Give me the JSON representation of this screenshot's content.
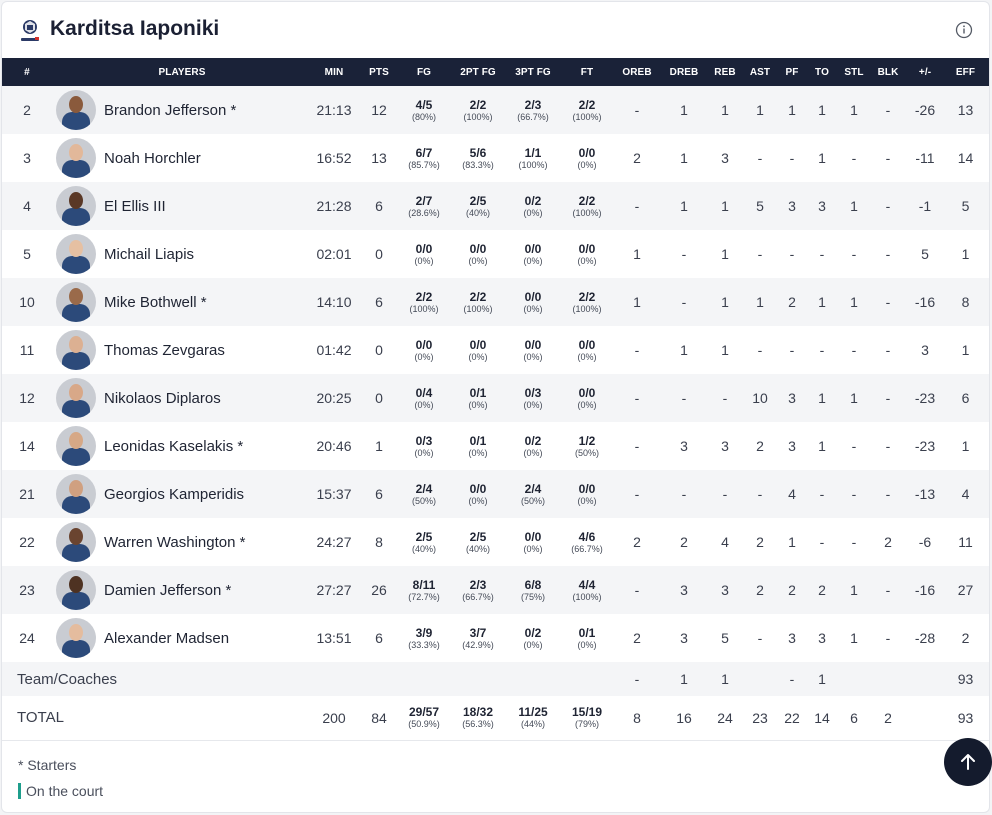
{
  "team": {
    "name": "Karditsa Iaponiki",
    "logo_icon": "karditsa-crest-icon"
  },
  "columns": [
    "#",
    "PLAYERS",
    "MIN",
    "PTS",
    "FG",
    "2PT FG",
    "3PT FG",
    "FT",
    "OREB",
    "DREB",
    "REB",
    "AST",
    "PF",
    "TO",
    "STL",
    "BLK",
    "+/-",
    "EFF"
  ],
  "players": [
    {
      "num": "2",
      "name": "Brandon Jefferson *",
      "min": "21:13",
      "pts": "12",
      "fg": [
        "4/5",
        "(80%)"
      ],
      "fg2": [
        "2/2",
        "(100%)"
      ],
      "fg3": [
        "2/3",
        "(66.7%)"
      ],
      "ft": [
        "2/2",
        "(100%)"
      ],
      "oreb": "-",
      "dreb": "1",
      "reb": "1",
      "ast": "1",
      "pf": "1",
      "to": "1",
      "stl": "1",
      "blk": "-",
      "pm": "-26",
      "eff": "13",
      "skin": "#8a5a3c"
    },
    {
      "num": "3",
      "name": "Noah Horchler",
      "min": "16:52",
      "pts": "13",
      "fg": [
        "6/7",
        "(85.7%)"
      ],
      "fg2": [
        "5/6",
        "(83.3%)"
      ],
      "fg3": [
        "1/1",
        "(100%)"
      ],
      "ft": [
        "0/0",
        "(0%)"
      ],
      "oreb": "2",
      "dreb": "1",
      "reb": "3",
      "ast": "-",
      "pf": "-",
      "to": "1",
      "stl": "-",
      "blk": "-",
      "pm": "-11",
      "eff": "14",
      "skin": "#e2b89a"
    },
    {
      "num": "4",
      "name": "El Ellis III",
      "min": "21:28",
      "pts": "6",
      "fg": [
        "2/7",
        "(28.6%)"
      ],
      "fg2": [
        "2/5",
        "(40%)"
      ],
      "fg3": [
        "0/2",
        "(0%)"
      ],
      "ft": [
        "2/2",
        "(100%)"
      ],
      "oreb": "-",
      "dreb": "1",
      "reb": "1",
      "ast": "5",
      "pf": "3",
      "to": "3",
      "stl": "1",
      "blk": "-",
      "pm": "-1",
      "eff": "5",
      "skin": "#5a3826"
    },
    {
      "num": "5",
      "name": "Michail Liapis",
      "min": "02:01",
      "pts": "0",
      "fg": [
        "0/0",
        "(0%)"
      ],
      "fg2": [
        "0/0",
        "(0%)"
      ],
      "fg3": [
        "0/0",
        "(0%)"
      ],
      "ft": [
        "0/0",
        "(0%)"
      ],
      "oreb": "1",
      "dreb": "-",
      "reb": "1",
      "ast": "-",
      "pf": "-",
      "to": "-",
      "stl": "-",
      "blk": "-",
      "pm": "5",
      "eff": "1",
      "skin": "#e6c0a2"
    },
    {
      "num": "10",
      "name": "Mike Bothwell *",
      "min": "14:10",
      "pts": "6",
      "fg": [
        "2/2",
        "(100%)"
      ],
      "fg2": [
        "2/2",
        "(100%)"
      ],
      "fg3": [
        "0/0",
        "(0%)"
      ],
      "ft": [
        "2/2",
        "(100%)"
      ],
      "oreb": "1",
      "dreb": "-",
      "reb": "1",
      "ast": "1",
      "pf": "2",
      "to": "1",
      "stl": "1",
      "blk": "-",
      "pm": "-16",
      "eff": "8",
      "skin": "#9a6a4a"
    },
    {
      "num": "11",
      "name": "Thomas Zevgaras",
      "min": "01:42",
      "pts": "0",
      "fg": [
        "0/0",
        "(0%)"
      ],
      "fg2": [
        "0/0",
        "(0%)"
      ],
      "fg3": [
        "0/0",
        "(0%)"
      ],
      "ft": [
        "0/0",
        "(0%)"
      ],
      "oreb": "-",
      "dreb": "1",
      "reb": "1",
      "ast": "-",
      "pf": "-",
      "to": "-",
      "stl": "-",
      "blk": "-",
      "pm": "3",
      "eff": "1",
      "skin": "#dcb092"
    },
    {
      "num": "12",
      "name": "Nikolaos Diplaros",
      "min": "20:25",
      "pts": "0",
      "fg": [
        "0/4",
        "(0%)"
      ],
      "fg2": [
        "0/1",
        "(0%)"
      ],
      "fg3": [
        "0/3",
        "(0%)"
      ],
      "ft": [
        "0/0",
        "(0%)"
      ],
      "oreb": "-",
      "dreb": "-",
      "reb": "-",
      "ast": "10",
      "pf": "3",
      "to": "1",
      "stl": "1",
      "blk": "-",
      "pm": "-23",
      "eff": "6",
      "skin": "#d8a888"
    },
    {
      "num": "14",
      "name": "Leonidas Kaselakis *",
      "min": "20:46",
      "pts": "1",
      "fg": [
        "0/3",
        "(0%)"
      ],
      "fg2": [
        "0/1",
        "(0%)"
      ],
      "fg3": [
        "0/2",
        "(0%)"
      ],
      "ft": [
        "1/2",
        "(50%)"
      ],
      "oreb": "-",
      "dreb": "3",
      "reb": "3",
      "ast": "2",
      "pf": "3",
      "to": "1",
      "stl": "-",
      "blk": "-",
      "pm": "-23",
      "eff": "1",
      "skin": "#d6a886"
    },
    {
      "num": "21",
      "name": "Georgios Kamperidis",
      "min": "15:37",
      "pts": "6",
      "fg": [
        "2/4",
        "(50%)"
      ],
      "fg2": [
        "0/0",
        "(0%)"
      ],
      "fg3": [
        "2/4",
        "(50%)"
      ],
      "ft": [
        "0/0",
        "(0%)"
      ],
      "oreb": "-",
      "dreb": "-",
      "reb": "-",
      "ast": "-",
      "pf": "4",
      "to": "-",
      "stl": "-",
      "blk": "-",
      "pm": "-13",
      "eff": "4",
      "skin": "#d0a080"
    },
    {
      "num": "22",
      "name": "Warren Washington *",
      "min": "24:27",
      "pts": "8",
      "fg": [
        "2/5",
        "(40%)"
      ],
      "fg2": [
        "2/5",
        "(40%)"
      ],
      "fg3": [
        "0/0",
        "(0%)"
      ],
      "ft": [
        "4/6",
        "(66.7%)"
      ],
      "oreb": "2",
      "dreb": "2",
      "reb": "4",
      "ast": "2",
      "pf": "1",
      "to": "-",
      "stl": "-",
      "blk": "2",
      "pm": "-6",
      "eff": "11",
      "skin": "#6a4430"
    },
    {
      "num": "23",
      "name": "Damien Jefferson *",
      "min": "27:27",
      "pts": "26",
      "fg": [
        "8/11",
        "(72.7%)"
      ],
      "fg2": [
        "2/3",
        "(66.7%)"
      ],
      "fg3": [
        "6/8",
        "(75%)"
      ],
      "ft": [
        "4/4",
        "(100%)"
      ],
      "oreb": "-",
      "dreb": "3",
      "reb": "3",
      "ast": "2",
      "pf": "2",
      "to": "2",
      "stl": "1",
      "blk": "-",
      "pm": "-16",
      "eff": "27",
      "skin": "#4e3222"
    },
    {
      "num": "24",
      "name": "Alexander Madsen",
      "min": "13:51",
      "pts": "6",
      "fg": [
        "3/9",
        "(33.3%)"
      ],
      "fg2": [
        "3/7",
        "(42.9%)"
      ],
      "fg3": [
        "0/2",
        "(0%)"
      ],
      "ft": [
        "0/1",
        "(0%)"
      ],
      "oreb": "2",
      "dreb": "3",
      "reb": "5",
      "ast": "-",
      "pf": "3",
      "to": "3",
      "stl": "1",
      "blk": "-",
      "pm": "-28",
      "eff": "2",
      "skin": "#e4bc9e"
    }
  ],
  "team_row": {
    "label": "Team/Coaches",
    "oreb": "-",
    "dreb": "1",
    "reb": "1",
    "ast": "",
    "pf": "-",
    "to": "1",
    "stl": "",
    "blk": "",
    "pm": "",
    "eff": "93"
  },
  "total_row": {
    "label": "TOTAL",
    "min": "200",
    "pts": "84",
    "fg": [
      "29/57",
      "(50.9%)"
    ],
    "fg2": [
      "18/32",
      "(56.3%)"
    ],
    "fg3": [
      "11/25",
      "(44%)"
    ],
    "ft": [
      "15/19",
      "(79%)"
    ],
    "oreb": "8",
    "dreb": "16",
    "reb": "24",
    "ast": "23",
    "pf": "22",
    "to": "14",
    "stl": "6",
    "blk": "2",
    "pm": "",
    "eff": "93"
  },
  "legend": {
    "starters": "* Starters",
    "on_court": "On the court"
  },
  "colors": {
    "header_bg": "#1a2238",
    "on_court_marker": "#1e9e8c",
    "scroll_button": "#141b2d"
  }
}
